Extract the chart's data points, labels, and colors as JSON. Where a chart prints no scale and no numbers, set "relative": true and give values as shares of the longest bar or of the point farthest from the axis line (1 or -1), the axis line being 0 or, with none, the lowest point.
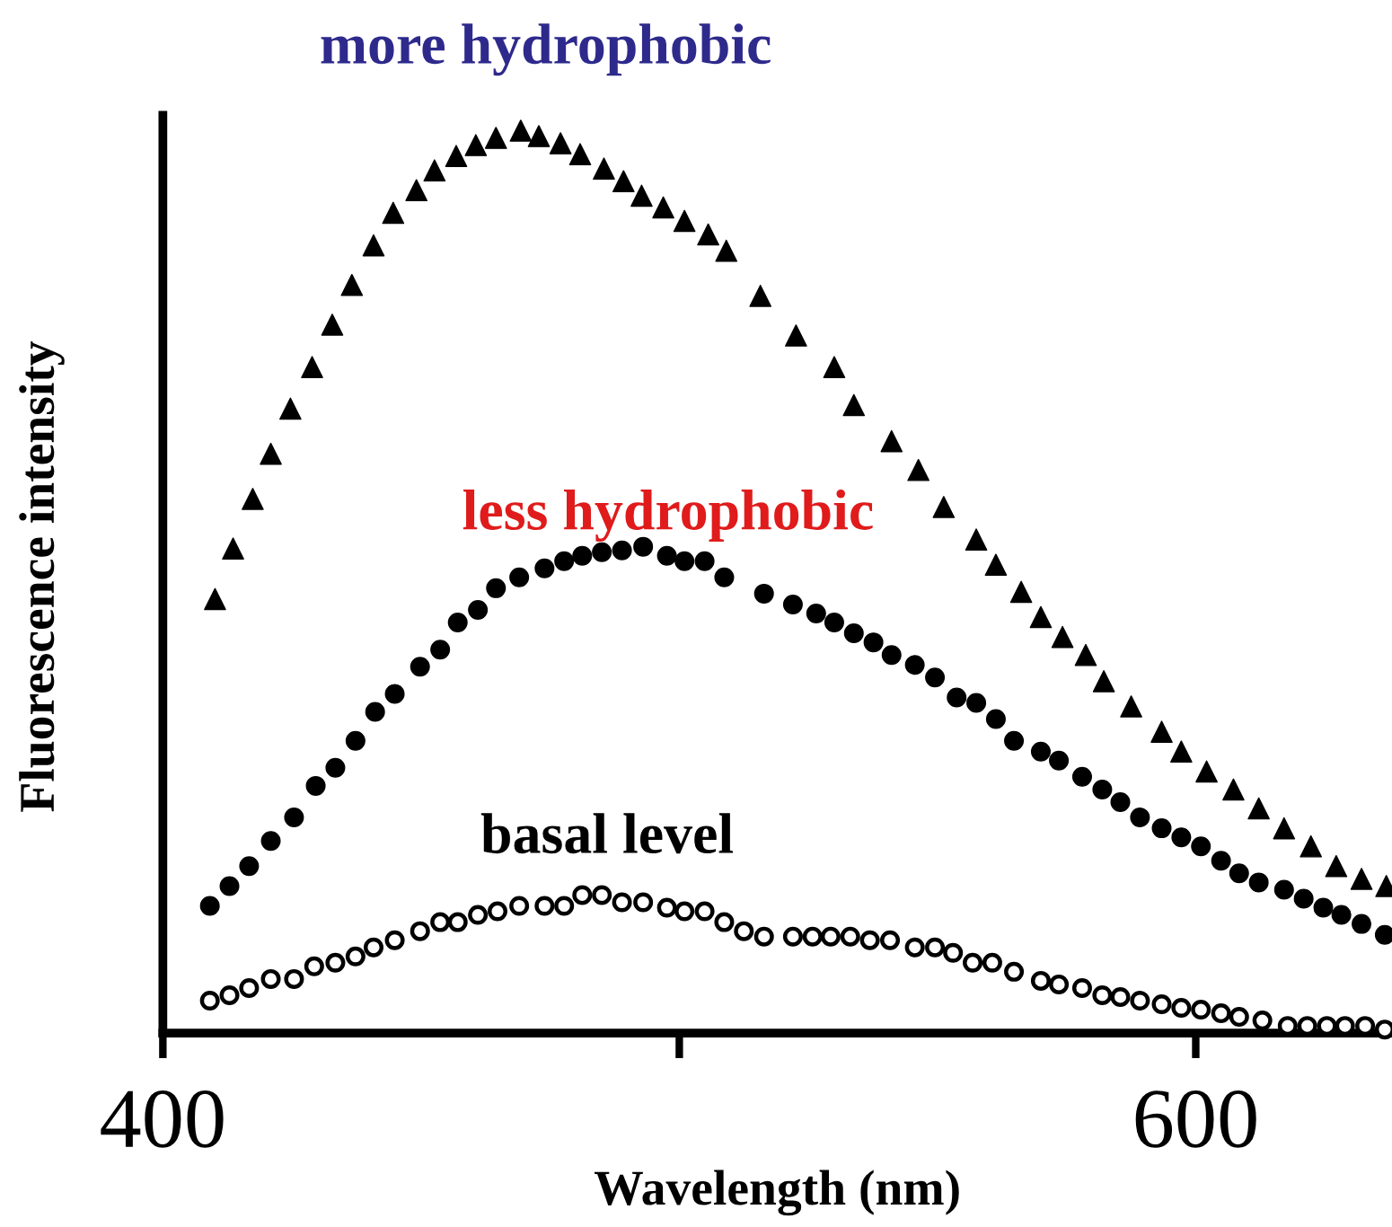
{
  "chart_data": {
    "type": "scatter",
    "xlabel": "Wavelength (nm)",
    "ylabel": "Fluorescence intensity",
    "relative": true,
    "xlim": [
      400,
      638
    ],
    "xticks": [
      400,
      {
        "value": 500,
        "label": null
      },
      600
    ],
    "grid": false,
    "legend": false,
    "series": [
      {
        "name": "more hydrophobic",
        "color": "#000000",
        "marker": "triangle",
        "x": [
          410.1,
          413.6,
          417.4,
          420.9,
          424.7,
          428.9,
          432.8,
          436.6,
          440.8,
          444.6,
          449.1,
          452.6,
          456.8,
          460.6,
          464.5,
          469.3,
          472.8,
          477.0,
          480.8,
          485.4,
          489.2,
          492.7,
          496.9,
          501.0,
          505.6,
          509.1,
          515.7,
          522.6,
          530.0,
          533.8,
          541.1,
          546.3,
          551.2,
          557.5,
          561.3,
          566.2,
          570.0,
          574.2,
          578.7,
          582.2,
          587.5,
          593.4,
          597.2,
          602.1,
          607.3,
          612.2,
          617.1,
          622.3,
          627.2,
          632.1,
          636.9
        ],
        "values": [
          0.481,
          0.537,
          0.592,
          0.642,
          0.692,
          0.738,
          0.785,
          0.829,
          0.873,
          0.909,
          0.934,
          0.956,
          0.972,
          0.984,
          0.992,
          1.0,
          0.994,
          0.986,
          0.974,
          0.958,
          0.944,
          0.928,
          0.915,
          0.9,
          0.885,
          0.867,
          0.817,
          0.773,
          0.738,
          0.696,
          0.656,
          0.624,
          0.583,
          0.547,
          0.519,
          0.489,
          0.461,
          0.439,
          0.419,
          0.39,
          0.362,
          0.334,
          0.312,
          0.29,
          0.27,
          0.249,
          0.227,
          0.207,
          0.185,
          0.171,
          0.163
        ]
      },
      {
        "name": "less hydrophobic",
        "color": "#000000",
        "marker": "circle",
        "x": [
          409.1,
          412.9,
          416.7,
          420.9,
          425.4,
          429.6,
          433.4,
          437.3,
          441.1,
          444.9,
          449.8,
          453.7,
          457.1,
          461.0,
          464.5,
          469.0,
          473.9,
          477.7,
          481.2,
          485.0,
          488.9,
          493.0,
          497.6,
          501.0,
          504.9,
          508.7,
          516.4,
          522.0,
          526.5,
          530.0,
          533.8,
          537.6,
          541.1,
          545.6,
          549.5,
          553.7,
          557.5,
          561.3,
          564.8,
          570.0,
          573.5,
          578.0,
          581.9,
          585.4,
          589.2,
          593.4,
          597.2,
          601.0,
          604.9,
          608.4,
          612.2,
          617.1,
          620.9,
          624.7,
          628.2,
          632.1,
          636.6
        ],
        "values": [
          0.141,
          0.163,
          0.185,
          0.213,
          0.239,
          0.274,
          0.294,
          0.324,
          0.356,
          0.376,
          0.406,
          0.425,
          0.455,
          0.469,
          0.493,
          0.505,
          0.515,
          0.523,
          0.529,
          0.533,
          0.535,
          0.539,
          0.529,
          0.523,
          0.523,
          0.505,
          0.487,
          0.475,
          0.465,
          0.455,
          0.443,
          0.433,
          0.419,
          0.408,
          0.394,
          0.372,
          0.366,
          0.348,
          0.324,
          0.312,
          0.302,
          0.284,
          0.27,
          0.256,
          0.239,
          0.227,
          0.217,
          0.207,
          0.191,
          0.177,
          0.167,
          0.159,
          0.149,
          0.139,
          0.131,
          0.121,
          0.109
        ]
      },
      {
        "name": "basal level",
        "color": "#ffffff",
        "marker": "circle",
        "x": [
          409.1,
          412.9,
          416.7,
          420.9,
          425.4,
          429.3,
          433.4,
          437.3,
          440.8,
          444.9,
          449.8,
          453.7,
          457.1,
          461.0,
          464.8,
          469.0,
          473.9,
          477.7,
          481.2,
          485.0,
          488.9,
          493.0,
          497.6,
          501.0,
          504.9,
          508.7,
          512.5,
          516.4,
          522.0,
          525.8,
          529.3,
          533.1,
          536.9,
          540.8,
          545.6,
          549.5,
          553.0,
          556.8,
          560.6,
          564.8,
          570.0,
          573.5,
          578.0,
          581.9,
          585.4,
          589.2,
          593.4,
          597.2,
          601.0,
          604.9,
          608.4,
          612.9,
          617.8,
          621.6,
          625.4,
          628.9,
          632.8,
          636.6
        ],
        "values": [
          0.036,
          0.042,
          0.05,
          0.06,
          0.06,
          0.074,
          0.078,
          0.085,
          0.095,
          0.103,
          0.113,
          0.123,
          0.123,
          0.131,
          0.135,
          0.141,
          0.141,
          0.141,
          0.153,
          0.153,
          0.145,
          0.145,
          0.139,
          0.135,
          0.135,
          0.123,
          0.113,
          0.107,
          0.107,
          0.107,
          0.107,
          0.107,
          0.103,
          0.103,
          0.095,
          0.095,
          0.089,
          0.078,
          0.078,
          0.068,
          0.058,
          0.054,
          0.05,
          0.042,
          0.04,
          0.036,
          0.032,
          0.028,
          0.026,
          0.022,
          0.018,
          0.014,
          0.008,
          0.008,
          0.008,
          0.008,
          0.008,
          0.004
        ]
      }
    ]
  }
}
